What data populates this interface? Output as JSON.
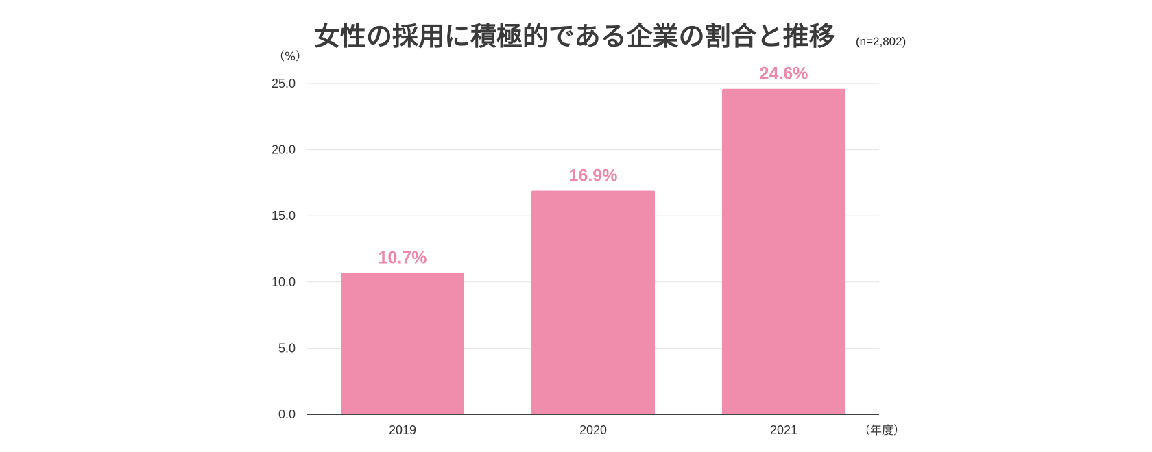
{
  "chart_data": {
    "type": "bar",
    "title": "女性の採用に積極的である企業の割合と推移",
    "subtitle": "(n=2,802)",
    "ylabel": "（%）",
    "xlabel": "（年度）",
    "categories": [
      "2019",
      "2020",
      "2021"
    ],
    "values": [
      10.7,
      16.9,
      24.6
    ],
    "value_labels": [
      "10.7%",
      "16.9%",
      "24.6%"
    ],
    "ylim": [
      0,
      25
    ],
    "yticks": [
      "0.0",
      "5.0",
      "10.0",
      "15.0",
      "20.0",
      "25.0"
    ],
    "grid": true,
    "legend": "none",
    "colors": {
      "bar": "#f08dad",
      "label": "#ee87aa"
    }
  }
}
